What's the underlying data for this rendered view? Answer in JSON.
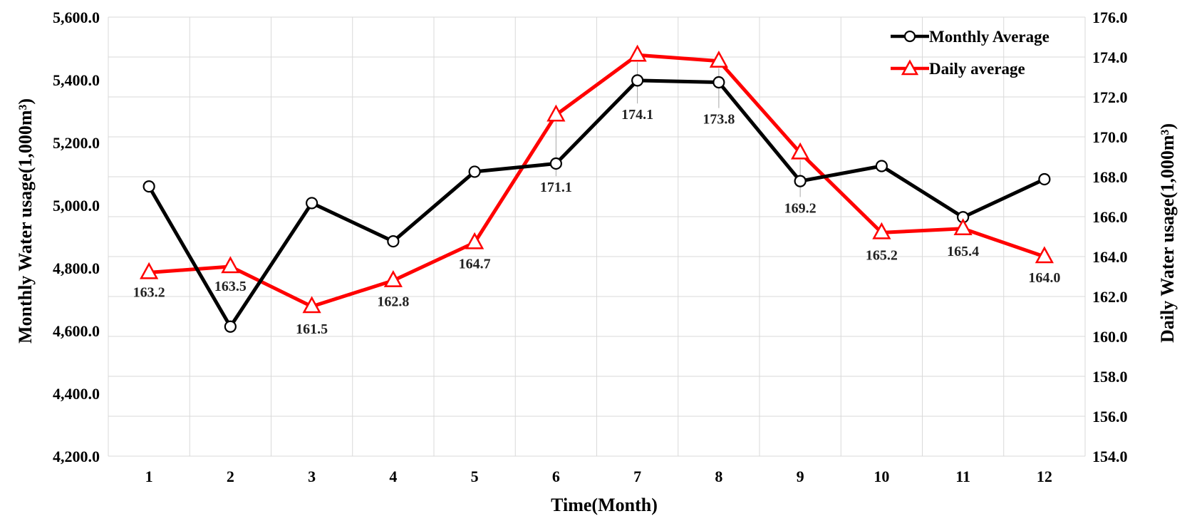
{
  "chart_data": {
    "type": "line",
    "title": "",
    "xlabel": "Time(Month)",
    "ylabel_left": "Monthly  Water usage(1,000m³)",
    "ylabel_right": "Daily Water usage(1,000m³)",
    "categories": [
      "1",
      "2",
      "3",
      "4",
      "5",
      "6",
      "7",
      "8",
      "9",
      "10",
      "11",
      "12"
    ],
    "y_left": {
      "min": 4200,
      "max": 5600,
      "step": 200,
      "tick_labels": [
        "4,200.0",
        "4,400.0",
        "4,600.0",
        "4,800.0",
        "5,000.0",
        "5,200.0",
        "5,400.0",
        "5,600.0"
      ]
    },
    "y_right": {
      "min": 154,
      "max": 176,
      "step": 2,
      "tick_labels": [
        "154.0",
        "156.0",
        "158.0",
        "160.0",
        "162.0",
        "164.0",
        "166.0",
        "168.0",
        "170.0",
        "172.0",
        "174.0",
        "176.0"
      ]
    },
    "grid": true,
    "legend_position": "top-right",
    "series": [
      {
        "name": "Monthly Average",
        "axis": "left",
        "color": "#000000",
        "marker": "circle",
        "values": [
          5060,
          4613,
          5007,
          4885,
          5107,
          5133,
          5398,
          5392,
          5077,
          5125,
          4962,
          5083
        ]
      },
      {
        "name": "Daily average",
        "axis": "right",
        "color": "#ff0000",
        "marker": "triangle",
        "values": [
          163.2,
          163.5,
          161.5,
          162.8,
          164.7,
          171.1,
          174.1,
          173.8,
          169.2,
          165.2,
          165.4,
          164.0
        ],
        "data_labels": [
          "163.2",
          "163.5",
          "161.5",
          "162.8",
          "164.7",
          "171.1",
          "174.1",
          "173.8",
          "169.2",
          "165.2",
          "165.4",
          "164.0"
        ]
      }
    ]
  }
}
